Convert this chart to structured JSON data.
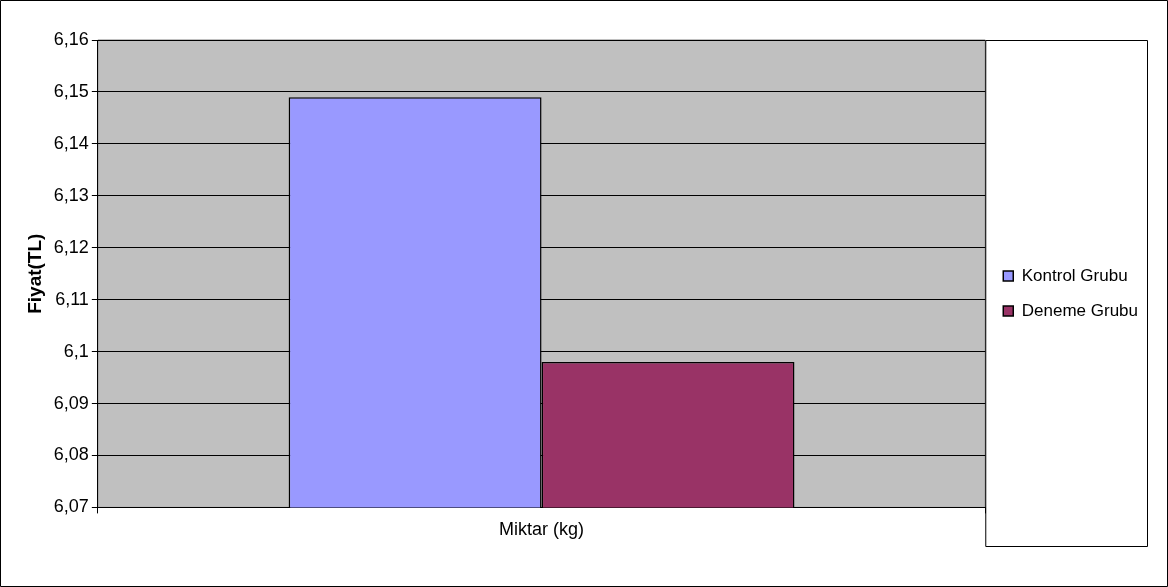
{
  "chart_data": {
    "type": "bar",
    "ylabel": "Fiyat(TL)",
    "categories": [
      "Miktar (kg)"
    ],
    "series": [
      {
        "name": "Kontrol Grubu",
        "color": "#9999ff",
        "values": [
          6.149
        ]
      },
      {
        "name": "Deneme Grubu",
        "color": "#993366",
        "values": [
          6.098
        ]
      }
    ],
    "ylim": [
      6.07,
      6.16
    ],
    "yticks": [
      {
        "value": 6.07,
        "label": "6,07"
      },
      {
        "value": 6.08,
        "label": "6,08"
      },
      {
        "value": 6.09,
        "label": "6,09"
      },
      {
        "value": 6.1,
        "label": "6,1"
      },
      {
        "value": 6.11,
        "label": "6,11"
      },
      {
        "value": 6.12,
        "label": "6,12"
      },
      {
        "value": 6.13,
        "label": "6,13"
      },
      {
        "value": 6.14,
        "label": "6,14"
      },
      {
        "value": 6.15,
        "label": "6,15"
      },
      {
        "value": 6.16,
        "label": "6,16"
      }
    ],
    "grid": "y",
    "legend": "right"
  }
}
